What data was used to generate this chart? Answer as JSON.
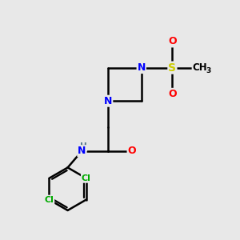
{
  "background_color": "#e8e8e8",
  "atom_colors": {
    "N": "#0000ff",
    "O": "#ff0000",
    "S": "#cccc00",
    "Cl": "#00aa00",
    "H": "#557788",
    "C": "#000000"
  },
  "bond_color": "#000000",
  "bond_width": 1.8,
  "figsize": [
    3.0,
    3.0
  ],
  "dpi": 100,
  "xlim": [
    0,
    10
  ],
  "ylim": [
    0,
    10
  ]
}
